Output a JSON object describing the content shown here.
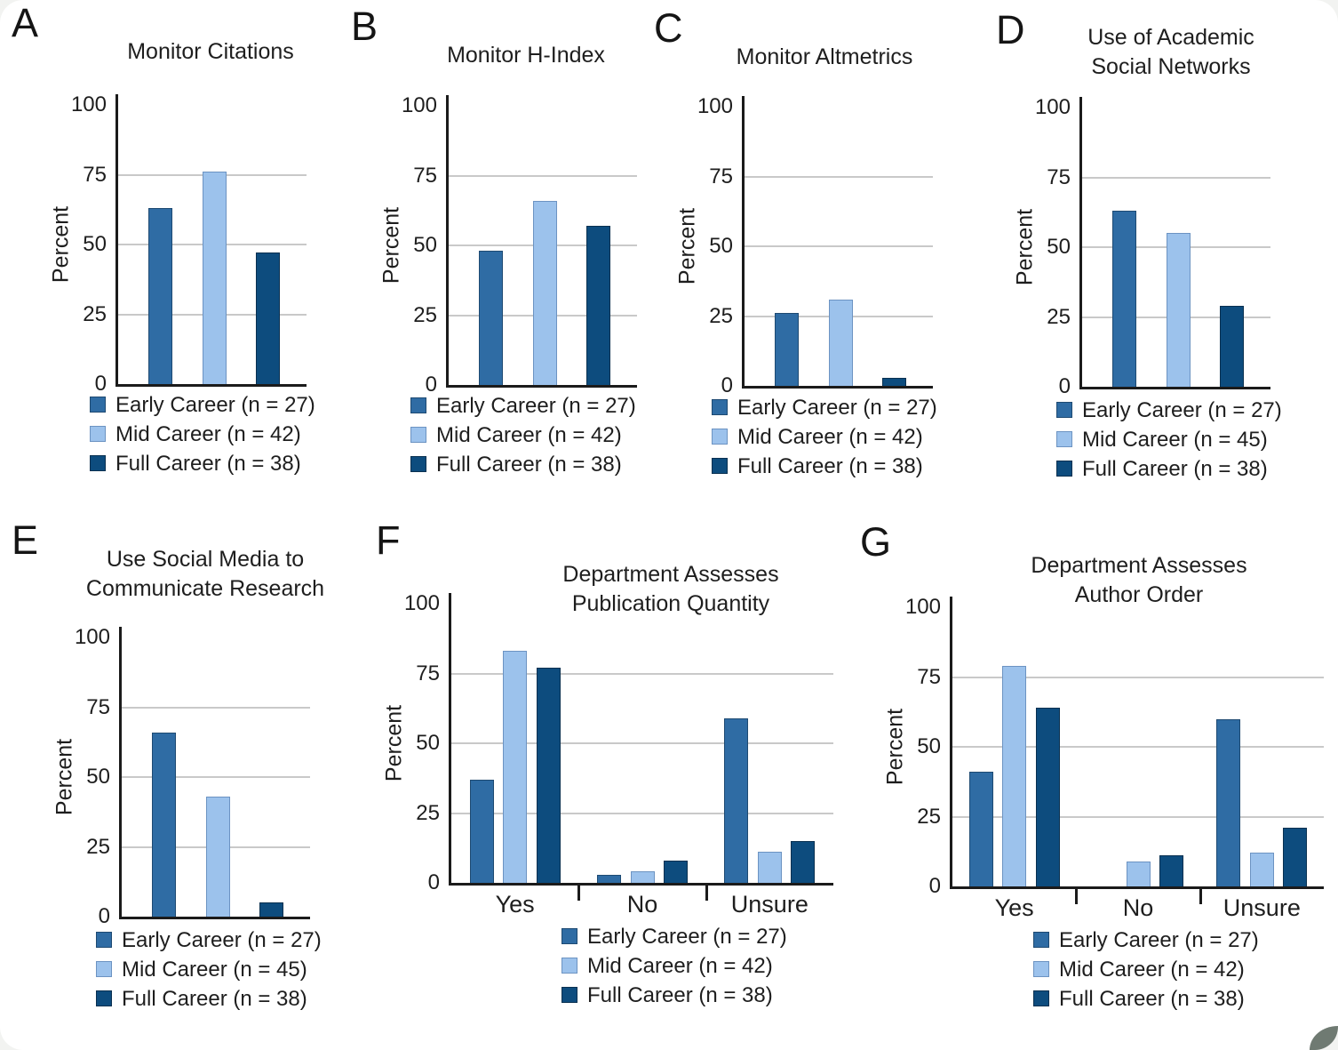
{
  "colors": {
    "early": "#2F6CA4",
    "mid": "#9CC2EC",
    "full": "#0D4C7E",
    "early_border": "#1E4A72",
    "mid_border": "#6C93C2",
    "full_border": "#093050",
    "axis": "#1b1b1b",
    "gridline": "#c9c9c9",
    "text": "#1e1e1e",
    "background": "#ffffff"
  },
  "chart_data": [
    {
      "panel": "A",
      "type": "bar",
      "title": "Monitor Citations",
      "title_lines": [
        "Monitor Citations"
      ],
      "ylabel": "Percent",
      "ylim": [
        0,
        100
      ],
      "yticks": [
        0,
        25,
        50,
        75,
        100
      ],
      "gridlines": [
        25,
        50,
        75
      ],
      "grid": true,
      "legend_position": "bottom-left",
      "categories": [],
      "series": [
        {
          "name": "Early Career (n = 27)",
          "color_key": "early",
          "values": [
            63
          ]
        },
        {
          "name": "Mid Career (n = 42)",
          "color_key": "mid",
          "values": [
            76
          ]
        },
        {
          "name": "Full Career (n = 38)",
          "color_key": "full",
          "values": [
            47
          ]
        }
      ]
    },
    {
      "panel": "B",
      "type": "bar",
      "title": "Monitor H-Index",
      "title_lines": [
        "Monitor H-Index"
      ],
      "ylabel": "Percent",
      "ylim": [
        0,
        100
      ],
      "yticks": [
        0,
        25,
        50,
        75,
        100
      ],
      "gridlines": [
        25,
        50,
        75
      ],
      "grid": true,
      "legend_position": "bottom-left",
      "categories": [],
      "series": [
        {
          "name": "Early Career (n = 27)",
          "color_key": "early",
          "values": [
            48
          ]
        },
        {
          "name": "Mid Career (n = 42)",
          "color_key": "mid",
          "values": [
            66
          ]
        },
        {
          "name": "Full Career (n = 38)",
          "color_key": "full",
          "values": [
            57
          ]
        }
      ]
    },
    {
      "panel": "C",
      "type": "bar",
      "title": "Monitor Altmetrics",
      "title_lines": [
        "Monitor Altmetrics"
      ],
      "ylabel": "Percent",
      "ylim": [
        0,
        100
      ],
      "yticks": [
        0,
        25,
        50,
        75,
        100
      ],
      "gridlines": [
        25,
        50,
        75
      ],
      "grid": true,
      "legend_position": "bottom-left",
      "categories": [],
      "series": [
        {
          "name": "Early Career (n = 27)",
          "color_key": "early",
          "values": [
            26
          ]
        },
        {
          "name": "Mid Career (n = 42)",
          "color_key": "mid",
          "values": [
            31
          ]
        },
        {
          "name": "Full Career (n = 38)",
          "color_key": "full",
          "values": [
            3
          ]
        }
      ]
    },
    {
      "panel": "D",
      "type": "bar",
      "title": "Use of Academic Social Networks",
      "title_lines": [
        "Use of Academic",
        "Social Networks"
      ],
      "ylabel": "Percent",
      "ylim": [
        0,
        100
      ],
      "yticks": [
        0,
        25,
        50,
        75,
        100
      ],
      "gridlines": [
        25,
        50,
        75
      ],
      "grid": true,
      "legend_position": "bottom-left",
      "categories": [],
      "series": [
        {
          "name": "Early Career (n = 27)",
          "color_key": "early",
          "values": [
            63
          ]
        },
        {
          "name": "Mid Career (n = 45)",
          "color_key": "mid",
          "values": [
            55
          ]
        },
        {
          "name": "Full Career (n = 38)",
          "color_key": "full",
          "values": [
            29
          ]
        }
      ]
    },
    {
      "panel": "E",
      "type": "bar",
      "title": "Use Social Media to Communicate Research",
      "title_lines": [
        "Use Social Media to",
        "Communicate Research"
      ],
      "ylabel": "Percent",
      "ylim": [
        0,
        100
      ],
      "yticks": [
        0,
        25,
        50,
        75,
        100
      ],
      "gridlines": [
        25,
        50,
        75
      ],
      "grid": true,
      "legend_position": "bottom-left",
      "categories": [],
      "series": [
        {
          "name": "Early Career (n = 27)",
          "color_key": "early",
          "values": [
            66
          ]
        },
        {
          "name": "Mid Career (n = 45)",
          "color_key": "mid",
          "values": [
            43
          ]
        },
        {
          "name": "Full Career (n = 38)",
          "color_key": "full",
          "values": [
            5
          ]
        }
      ]
    },
    {
      "panel": "F",
      "type": "bar",
      "title": "Department Assesses Publication Quantity",
      "title_lines": [
        "Department Assesses",
        "Publication Quantity"
      ],
      "ylabel": "Percent",
      "ylim": [
        0,
        100
      ],
      "yticks": [
        0,
        25,
        50,
        75,
        100
      ],
      "gridlines": [
        25,
        50,
        75
      ],
      "grid": true,
      "legend_position": "bottom-center",
      "categories": [
        "Yes",
        "No",
        "Unsure"
      ],
      "series": [
        {
          "name": "Early Career (n = 27)",
          "color_key": "early",
          "values": [
            37,
            3,
            59
          ]
        },
        {
          "name": "Mid Career (n = 42)",
          "color_key": "mid",
          "values": [
            83,
            4,
            11
          ]
        },
        {
          "name": "Full Career (n = 38)",
          "color_key": "full",
          "values": [
            77,
            8,
            15
          ]
        }
      ]
    },
    {
      "panel": "G",
      "type": "bar",
      "title": "Department Assesses Author Order",
      "title_lines": [
        "Department Assesses",
        "Author Order"
      ],
      "ylabel": "Percent",
      "ylim": [
        0,
        100
      ],
      "yticks": [
        0,
        25,
        50,
        75,
        100
      ],
      "gridlines": [
        25,
        50,
        75
      ],
      "grid": true,
      "legend_position": "bottom-center",
      "categories": [
        "Yes",
        "No",
        "Unsure"
      ],
      "series": [
        {
          "name": "Early Career (n = 27)",
          "color_key": "early",
          "values": [
            41,
            0,
            60
          ]
        },
        {
          "name": "Mid Career (n = 42)",
          "color_key": "mid",
          "values": [
            79,
            9,
            12
          ]
        },
        {
          "name": "Full Career (n = 38)",
          "color_key": "full",
          "values": [
            64,
            11,
            21
          ]
        }
      ]
    }
  ]
}
